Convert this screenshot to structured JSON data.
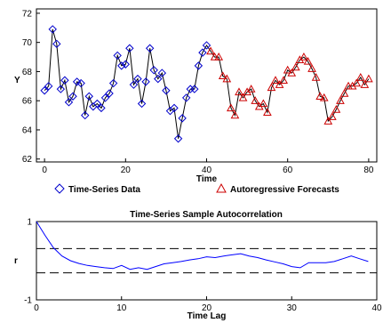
{
  "chart_data": [
    {
      "type": "line",
      "title": "",
      "xlabel": "Time",
      "ylabel": "Y",
      "xlim": [
        -2,
        82
      ],
      "ylim": [
        61.8,
        72.3
      ],
      "x_ticks": [
        "0",
        "20",
        "40",
        "60",
        "80"
      ],
      "y_ticks": [
        "62",
        "64",
        "66",
        "68",
        "70",
        "72"
      ],
      "x_tick_values": [
        0,
        20,
        40,
        60,
        80
      ],
      "y_tick_values": [
        62,
        64,
        66,
        68,
        70,
        72
      ],
      "colors": {
        "data": "#0000cc",
        "forecast": "#cc0000",
        "line": "#000000"
      },
      "legend": {
        "placement": "bottom",
        "entries": [
          {
            "name": "Time-Series Data",
            "marker": "diamond",
            "color": "#0000cc"
          },
          {
            "name": "Autoregressive Forecasts",
            "marker": "triangle",
            "color": "#cc0000"
          }
        ]
      },
      "series": [
        {
          "name": "Time-Series Data",
          "marker": "diamond",
          "x": [
            0,
            1,
            2,
            3,
            4,
            5,
            6,
            7,
            8,
            9,
            10,
            11,
            12,
            13,
            14,
            15,
            16,
            17,
            18,
            19,
            20,
            21,
            22,
            23,
            24,
            25,
            26,
            27,
            28,
            29,
            30,
            31,
            32,
            33,
            34,
            35,
            36,
            37,
            38,
            39,
            40
          ],
          "y": [
            66.7,
            67.0,
            70.9,
            69.9,
            66.8,
            67.4,
            65.9,
            66.3,
            67.3,
            67.2,
            65.0,
            66.3,
            65.6,
            65.8,
            65.5,
            66.2,
            66.5,
            67.2,
            69.1,
            68.4,
            68.5,
            69.6,
            67.1,
            67.5,
            65.8,
            67.3,
            69.6,
            68.1,
            67.5,
            67.9,
            66.7,
            65.3,
            65.5,
            63.4,
            64.8,
            66.2,
            66.8,
            66.8,
            68.4,
            69.3,
            69.8
          ],
          "values": [
            66.7,
            67.0,
            70.9,
            69.9,
            66.8,
            67.4,
            65.9,
            66.3,
            67.3,
            67.2,
            65.0,
            66.3,
            65.6,
            65.8,
            65.5,
            66.2,
            66.5,
            67.2,
            69.1,
            68.4,
            68.5,
            69.6,
            67.1,
            67.5,
            65.8,
            67.3,
            69.6,
            68.1,
            67.5,
            67.9,
            66.7,
            65.3,
            65.5,
            63.4,
            64.8,
            66.2,
            66.8,
            66.8,
            68.4,
            69.3,
            69.8
          ]
        },
        {
          "name": "Autoregressive Forecasts",
          "marker": "triangle",
          "x": [
            41,
            42,
            43,
            44,
            45,
            46,
            47,
            48,
            49,
            50,
            51,
            52,
            53,
            54,
            55,
            56,
            57,
            58,
            59,
            60,
            61,
            62,
            63,
            64,
            65,
            66,
            67,
            68,
            69,
            70,
            71,
            72,
            73,
            74,
            75,
            76,
            77,
            78,
            79,
            80
          ],
          "y": [
            69.4,
            69.0,
            69.0,
            67.7,
            67.5,
            65.5,
            65.0,
            66.6,
            66.2,
            66.6,
            66.8,
            66.0,
            65.6,
            65.8,
            65.2,
            66.9,
            67.4,
            67.1,
            67.4,
            68.1,
            67.9,
            68.3,
            68.8,
            69.0,
            68.7,
            68.2,
            67.6,
            66.3,
            66.2,
            64.6,
            64.9,
            65.4,
            66.0,
            66.5,
            67.0,
            67.0,
            67.2,
            67.6,
            67.1,
            67.5
          ],
          "values": [
            69.4,
            69.0,
            69.0,
            67.7,
            67.5,
            65.5,
            65.0,
            66.6,
            66.2,
            66.6,
            66.8,
            66.0,
            65.6,
            65.8,
            65.2,
            66.9,
            67.4,
            67.1,
            67.4,
            68.1,
            67.9,
            68.3,
            68.8,
            69.0,
            68.7,
            68.2,
            67.6,
            66.3,
            66.2,
            64.6,
            64.9,
            65.4,
            66.0,
            66.5,
            67.0,
            67.0,
            67.2,
            67.6,
            67.1,
            67.5
          ]
        }
      ]
    },
    {
      "type": "line",
      "title": "Time-Series Sample Autocorrelation",
      "xlabel": "Time Lag",
      "ylabel": "r",
      "xlim": [
        0,
        40
      ],
      "ylim": [
        -1,
        1
      ],
      "x_ticks": [
        "0",
        "10",
        "20",
        "30",
        "40"
      ],
      "y_ticks": [
        "-1",
        "1"
      ],
      "x_tick_values": [
        0,
        10,
        20,
        30,
        40
      ],
      "y_tick_values": [
        -1,
        1
      ],
      "confidence_bounds": [
        0.31,
        -0.31
      ],
      "colors": {
        "acf": "#0000ff",
        "bounds": "#000000"
      },
      "series": [
        {
          "x": [
            0,
            1,
            2,
            3,
            4,
            5,
            6,
            7,
            8,
            9,
            10,
            11,
            12,
            13,
            14,
            15,
            16,
            17,
            18,
            19,
            20,
            21,
            22,
            23,
            24,
            25,
            26,
            27,
            28,
            29,
            30,
            31,
            32,
            33,
            34,
            35,
            36,
            37,
            38,
            39
          ],
          "y": [
            1.0,
            0.65,
            0.33,
            0.12,
            0.0,
            -0.07,
            -0.12,
            -0.15,
            -0.18,
            -0.2,
            -0.12,
            -0.22,
            -0.18,
            -0.22,
            -0.15,
            -0.08,
            -0.05,
            -0.02,
            0.02,
            0.05,
            0.1,
            0.08,
            0.12,
            0.15,
            0.18,
            0.12,
            0.08,
            0.02,
            -0.03,
            -0.08,
            -0.15,
            -0.18,
            -0.05,
            -0.05,
            -0.05,
            -0.02,
            0.05,
            0.12,
            0.05,
            -0.02
          ],
          "values": [
            1.0,
            0.65,
            0.33,
            0.12,
            0.0,
            -0.07,
            -0.12,
            -0.15,
            -0.18,
            -0.2,
            -0.12,
            -0.22,
            -0.18,
            -0.22,
            -0.15,
            -0.08,
            -0.05,
            -0.02,
            0.02,
            0.05,
            0.1,
            0.08,
            0.12,
            0.15,
            0.18,
            0.12,
            0.08,
            0.02,
            -0.03,
            -0.08,
            -0.15,
            -0.18,
            -0.05,
            -0.05,
            -0.05,
            -0.02,
            0.05,
            0.12,
            0.05,
            -0.02
          ]
        }
      ]
    }
  ]
}
